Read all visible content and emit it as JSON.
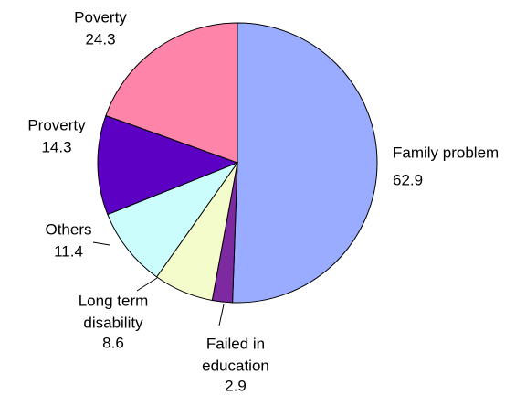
{
  "chart_data": {
    "type": "pie",
    "categories": [
      [
        "Family problem"
      ],
      [
        "Failed in",
        "education"
      ],
      [
        "Long term",
        "disability"
      ],
      [
        "Others"
      ],
      [
        "Proverty"
      ],
      [
        "Poverty"
      ]
    ],
    "values": [
      62.9,
      2.9,
      8.6,
      11.4,
      14.3,
      24.3
    ],
    "colors": [
      "#9aacff",
      "#7d2aa0",
      "#f4fccc",
      "#ccfdfd",
      "#5c00c4",
      "#ff84aa"
    ]
  }
}
